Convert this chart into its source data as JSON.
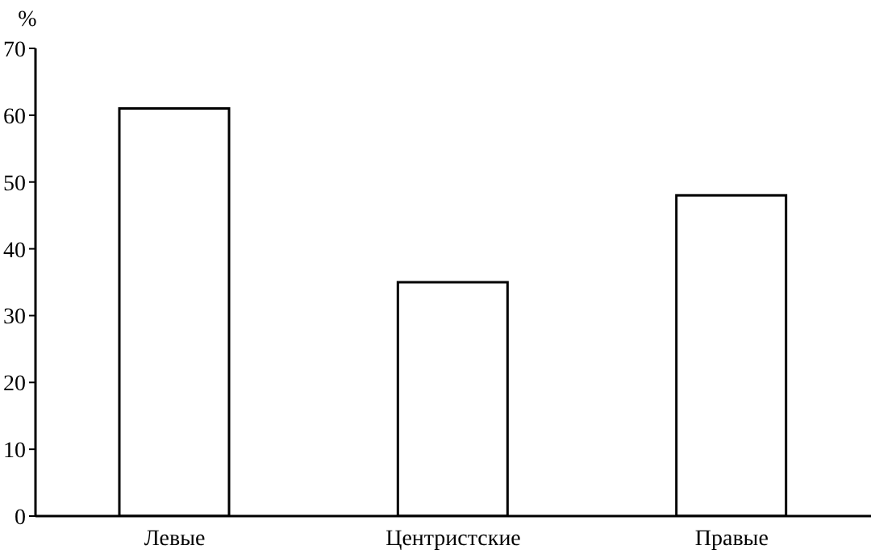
{
  "chart_data": {
    "type": "bar",
    "ylabel": "%",
    "categories": [
      "Левые",
      "Центристские",
      "Правые"
    ],
    "values": [
      61,
      35,
      48
    ],
    "color": "#ffffff",
    "ylim": [
      0,
      70
    ],
    "yticks": [
      0,
      10,
      20,
      30,
      40,
      50,
      60,
      70
    ],
    "grid": false,
    "legend": false
  }
}
